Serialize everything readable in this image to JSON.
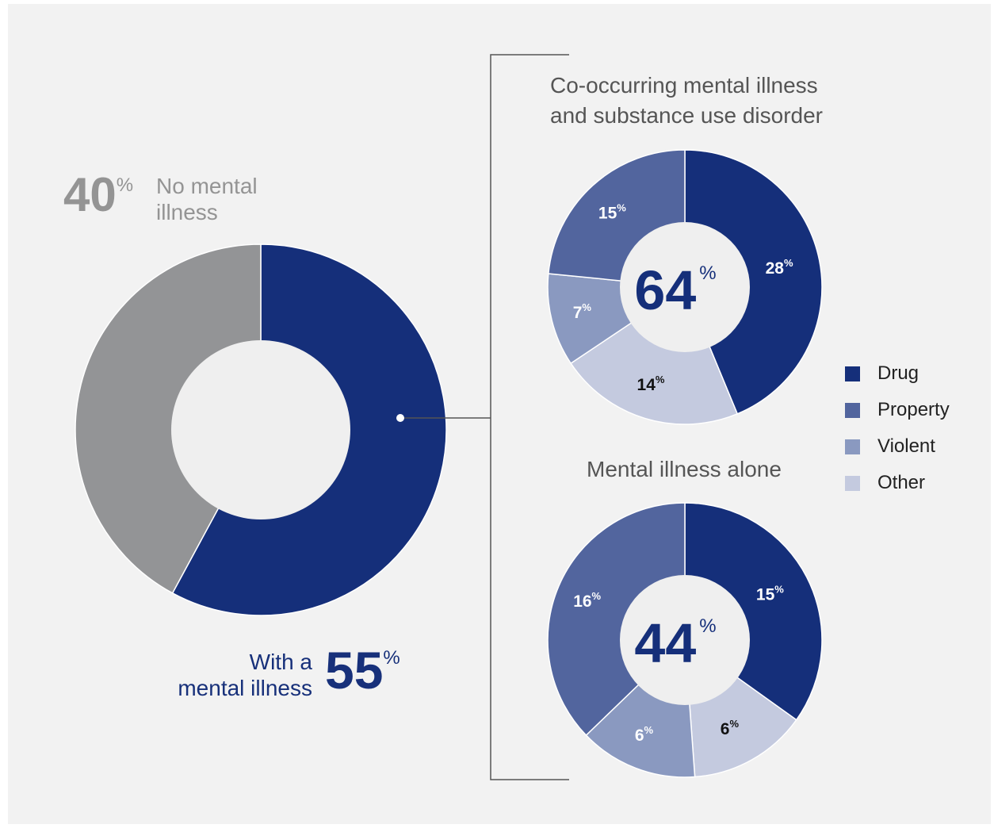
{
  "colors": {
    "drug": "#152f7a",
    "property": "#52659e",
    "violent": "#8a99c0",
    "other": "#c4cadf",
    "no_mental_illness": "#939496",
    "background": "#f2f2f2",
    "center": "#efefef"
  },
  "main": {
    "no_mental_illness": {
      "value": "40",
      "pct": "%",
      "line1": "No mental",
      "line2": "illness"
    },
    "with_mental_illness": {
      "value": "55",
      "pct": "%",
      "line1": "With a",
      "line2": "mental illness"
    }
  },
  "legend": {
    "items": [
      {
        "label": "Drug",
        "color_key": "drug"
      },
      {
        "label": "Property",
        "color_key": "property"
      },
      {
        "label": "Violent",
        "color_key": "violent"
      },
      {
        "label": "Other",
        "color_key": "other"
      }
    ]
  },
  "chart_data": [
    {
      "type": "pie",
      "title": "",
      "slices": [
        {
          "label": "No mental illness",
          "value": 40
        },
        {
          "label": "With a mental illness",
          "value": 55
        }
      ]
    },
    {
      "type": "pie",
      "title_line1": "Co-occurring mental illness",
      "title_line2": "and substance use disorder",
      "total": "64",
      "total_pct": "%",
      "slices": [
        {
          "label": "Drug",
          "value": 28,
          "display": "28",
          "text_color": "#ffffff"
        },
        {
          "label": "Other",
          "value": 14,
          "display": "14",
          "text_color": "#111111"
        },
        {
          "label": "Violent",
          "value": 7,
          "display": "7",
          "text_color": "#ffffff"
        },
        {
          "label": "Property",
          "value": 15,
          "display": "15",
          "text_color": "#ffffff"
        }
      ]
    },
    {
      "type": "pie",
      "title": "Mental illness alone",
      "total": "44",
      "total_pct": "%",
      "slices": [
        {
          "label": "Drug",
          "value": 15,
          "display": "15",
          "text_color": "#ffffff"
        },
        {
          "label": "Other",
          "value": 6,
          "display": "6",
          "text_color": "#111111"
        },
        {
          "label": "Violent",
          "value": 6,
          "display": "6",
          "text_color": "#ffffff"
        },
        {
          "label": "Property",
          "value": 16,
          "display": "16",
          "text_color": "#ffffff"
        }
      ]
    }
  ]
}
